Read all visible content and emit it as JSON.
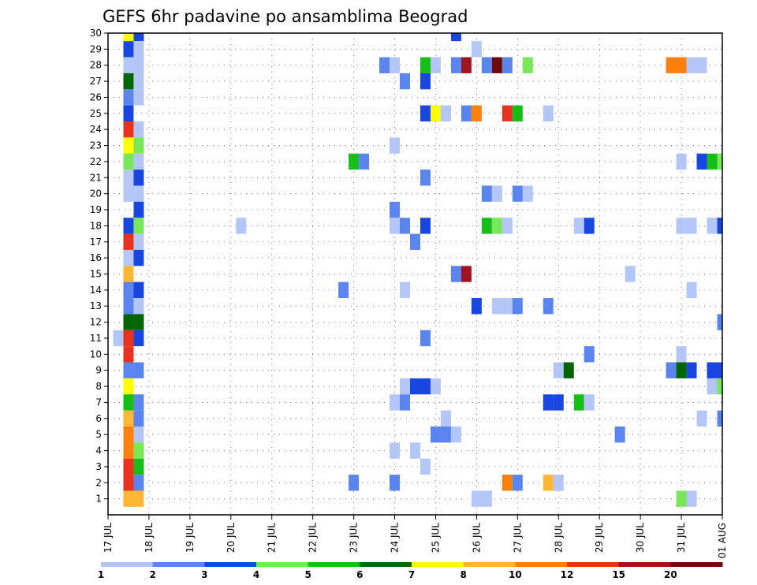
{
  "chart_data": {
    "type": "heatmap",
    "title": "GEFS 6hr padavine po ansamblima Beograd",
    "x_tick_labels": [
      "17 JUL",
      "18 JUL",
      "19 JUL",
      "20 JUL",
      "21 JUL",
      "22 JUL",
      "23 JUL",
      "24 JUL",
      "25 JUL",
      "26 JUL",
      "27 JUL",
      "28 JUL",
      "29 JUL",
      "30 JUL",
      "31 JUL",
      "01 AUG"
    ],
    "y_tick_labels": [
      "1",
      "2",
      "3",
      "4",
      "5",
      "6",
      "7",
      "8",
      "9",
      "10",
      "11",
      "12",
      "13",
      "14",
      "15",
      "16",
      "17",
      "18",
      "19",
      "20",
      "21",
      "22",
      "23",
      "24",
      "25",
      "26",
      "27",
      "28",
      "29",
      "30"
    ],
    "xlim_days": [
      0,
      15
    ],
    "ylim": [
      0,
      30
    ],
    "grid": true,
    "legend_placement": "bottom",
    "legend_labels": [
      "1",
      "2",
      "3",
      "4",
      "5",
      "6",
      "7",
      "8",
      "10",
      "12",
      "15",
      "20"
    ],
    "palette": [
      "#b3c6f5",
      "#5b85ee",
      "#1846de",
      "#78e85a",
      "#17be17",
      "#056505",
      "#ffff00",
      "#ffb637",
      "#ff7f0f",
      "#e6321e",
      "#a0141e",
      "#6e0a0a"
    ],
    "cell_step_days": 0.25,
    "cells": [
      {
        "ens": 30,
        "x": 0.5,
        "c": 6
      },
      {
        "ens": 30,
        "x": 0.75,
        "c": 2
      },
      {
        "ens": 30,
        "x": 8.5,
        "c": 2
      },
      {
        "ens": 29,
        "x": 0.5,
        "c": 2
      },
      {
        "ens": 29,
        "x": 0.75,
        "c": 0
      },
      {
        "ens": 29,
        "x": 9,
        "c": 0
      },
      {
        "ens": 28,
        "x": 0.5,
        "c": 0
      },
      {
        "ens": 28,
        "x": 0.75,
        "c": 0
      },
      {
        "ens": 28,
        "x": 6.75,
        "c": 1
      },
      {
        "ens": 28,
        "x": 7,
        "c": 0
      },
      {
        "ens": 28,
        "x": 7.75,
        "c": 4
      },
      {
        "ens": 28,
        "x": 8,
        "c": 0
      },
      {
        "ens": 28,
        "x": 8.5,
        "c": 1
      },
      {
        "ens": 28,
        "x": 8.75,
        "c": 10
      },
      {
        "ens": 28,
        "x": 9.25,
        "c": 1
      },
      {
        "ens": 28,
        "x": 9.5,
        "c": 11
      },
      {
        "ens": 28,
        "x": 9.75,
        "c": 1
      },
      {
        "ens": 28,
        "x": 10.25,
        "c": 3
      },
      {
        "ens": 28,
        "x": 13.75,
        "c": 8
      },
      {
        "ens": 28,
        "x": 14,
        "c": 8
      },
      {
        "ens": 28,
        "x": 14.25,
        "c": 0
      },
      {
        "ens": 28,
        "x": 14.5,
        "c": 0
      },
      {
        "ens": 27,
        "x": 0.5,
        "c": 5
      },
      {
        "ens": 27,
        "x": 0.75,
        "c": 0
      },
      {
        "ens": 27,
        "x": 7.25,
        "c": 1
      },
      {
        "ens": 27,
        "x": 7.75,
        "c": 2
      },
      {
        "ens": 26,
        "x": 0.5,
        "c": 1
      },
      {
        "ens": 26,
        "x": 0.75,
        "c": 0
      },
      {
        "ens": 25,
        "x": 0.5,
        "c": 2
      },
      {
        "ens": 25,
        "x": 7.75,
        "c": 2
      },
      {
        "ens": 25,
        "x": 8,
        "c": 6
      },
      {
        "ens": 25,
        "x": 8.25,
        "c": 0
      },
      {
        "ens": 25,
        "x": 8.75,
        "c": 1
      },
      {
        "ens": 25,
        "x": 9,
        "c": 8
      },
      {
        "ens": 25,
        "x": 9.75,
        "c": 9
      },
      {
        "ens": 25,
        "x": 10,
        "c": 4
      },
      {
        "ens": 25,
        "x": 10.75,
        "c": 0
      },
      {
        "ens": 24,
        "x": 0.5,
        "c": 9
      },
      {
        "ens": 24,
        "x": 0.75,
        "c": 0
      },
      {
        "ens": 23,
        "x": 0.5,
        "c": 6
      },
      {
        "ens": 23,
        "x": 0.75,
        "c": 3
      },
      {
        "ens": 23,
        "x": 7,
        "c": 0
      },
      {
        "ens": 22,
        "x": 0.5,
        "c": 3
      },
      {
        "ens": 22,
        "x": 0.75,
        "c": 0
      },
      {
        "ens": 22,
        "x": 6,
        "c": 4
      },
      {
        "ens": 22,
        "x": 6.25,
        "c": 1
      },
      {
        "ens": 22,
        "x": 14,
        "c": 0
      },
      {
        "ens": 22,
        "x": 14.5,
        "c": 2
      },
      {
        "ens": 22,
        "x": 14.75,
        "c": 4
      },
      {
        "ens": 22,
        "x": 15,
        "c": 3
      },
      {
        "ens": 21,
        "x": 0.5,
        "c": 0
      },
      {
        "ens": 21,
        "x": 0.75,
        "c": 2
      },
      {
        "ens": 21,
        "x": 7.75,
        "c": 1
      },
      {
        "ens": 20,
        "x": 0.5,
        "c": 0
      },
      {
        "ens": 20,
        "x": 0.75,
        "c": 0
      },
      {
        "ens": 20,
        "x": 9.25,
        "c": 1
      },
      {
        "ens": 20,
        "x": 9.5,
        "c": 0
      },
      {
        "ens": 20,
        "x": 10,
        "c": 1
      },
      {
        "ens": 20,
        "x": 10.25,
        "c": 0
      },
      {
        "ens": 19,
        "x": 0.75,
        "c": 2
      },
      {
        "ens": 19,
        "x": 7,
        "c": 1
      },
      {
        "ens": 18,
        "x": 0.5,
        "c": 2
      },
      {
        "ens": 18,
        "x": 0.75,
        "c": 3
      },
      {
        "ens": 18,
        "x": 3.25,
        "c": 0
      },
      {
        "ens": 18,
        "x": 7,
        "c": 0
      },
      {
        "ens": 18,
        "x": 7.25,
        "c": 1
      },
      {
        "ens": 18,
        "x": 7.75,
        "c": 2
      },
      {
        "ens": 18,
        "x": 9.25,
        "c": 4
      },
      {
        "ens": 18,
        "x": 9.5,
        "c": 3
      },
      {
        "ens": 18,
        "x": 9.75,
        "c": 0
      },
      {
        "ens": 18,
        "x": 11.5,
        "c": 0
      },
      {
        "ens": 18,
        "x": 11.75,
        "c": 2
      },
      {
        "ens": 18,
        "x": 14,
        "c": 0
      },
      {
        "ens": 18,
        "x": 14.25,
        "c": 0
      },
      {
        "ens": 18,
        "x": 14.75,
        "c": 0
      },
      {
        "ens": 18,
        "x": 15,
        "c": 2
      },
      {
        "ens": 17,
        "x": 0.5,
        "c": 9
      },
      {
        "ens": 17,
        "x": 0.75,
        "c": 0
      },
      {
        "ens": 17,
        "x": 7.5,
        "c": 1
      },
      {
        "ens": 16,
        "x": 0.5,
        "c": 0
      },
      {
        "ens": 16,
        "x": 0.75,
        "c": 2
      },
      {
        "ens": 15,
        "x": 0.5,
        "c": 7
      },
      {
        "ens": 15,
        "x": 8.5,
        "c": 1
      },
      {
        "ens": 15,
        "x": 8.75,
        "c": 10
      },
      {
        "ens": 15,
        "x": 12.75,
        "c": 0
      },
      {
        "ens": 14,
        "x": 0.5,
        "c": 1
      },
      {
        "ens": 14,
        "x": 0.75,
        "c": 2
      },
      {
        "ens": 14,
        "x": 5.75,
        "c": 1
      },
      {
        "ens": 14,
        "x": 7.25,
        "c": 0
      },
      {
        "ens": 14,
        "x": 14.25,
        "c": 0
      },
      {
        "ens": 13,
        "x": 0.5,
        "c": 1
      },
      {
        "ens": 13,
        "x": 0.75,
        "c": 0
      },
      {
        "ens": 13,
        "x": 9,
        "c": 2
      },
      {
        "ens": 13,
        "x": 9.5,
        "c": 0
      },
      {
        "ens": 13,
        "x": 9.75,
        "c": 0
      },
      {
        "ens": 13,
        "x": 10,
        "c": 1
      },
      {
        "ens": 13,
        "x": 10.75,
        "c": 1
      },
      {
        "ens": 12,
        "x": 0.5,
        "c": 5
      },
      {
        "ens": 12,
        "x": 0.75,
        "c": 5
      },
      {
        "ens": 12,
        "x": 15,
        "c": 1
      },
      {
        "ens": 11,
        "x": 0.25,
        "c": 0
      },
      {
        "ens": 11,
        "x": 0.5,
        "c": 9
      },
      {
        "ens": 11,
        "x": 0.75,
        "c": 2
      },
      {
        "ens": 11,
        "x": 7.75,
        "c": 1
      },
      {
        "ens": 10,
        "x": 0.5,
        "c": 9
      },
      {
        "ens": 10,
        "x": 11.75,
        "c": 1
      },
      {
        "ens": 10,
        "x": 14,
        "c": 0
      },
      {
        "ens": 9,
        "x": 0.5,
        "c": 1
      },
      {
        "ens": 9,
        "x": 0.75,
        "c": 1
      },
      {
        "ens": 9,
        "x": 11,
        "c": 0
      },
      {
        "ens": 9,
        "x": 11.25,
        "c": 5
      },
      {
        "ens": 9,
        "x": 13.75,
        "c": 1
      },
      {
        "ens": 9,
        "x": 14,
        "c": 5
      },
      {
        "ens": 9,
        "x": 14.25,
        "c": 2
      },
      {
        "ens": 9,
        "x": 14.75,
        "c": 2
      },
      {
        "ens": 9,
        "x": 15,
        "c": 2
      },
      {
        "ens": 8,
        "x": 0.5,
        "c": 6
      },
      {
        "ens": 8,
        "x": 7.25,
        "c": 0
      },
      {
        "ens": 8,
        "x": 7.5,
        "c": 2
      },
      {
        "ens": 8,
        "x": 7.75,
        "c": 2
      },
      {
        "ens": 8,
        "x": 8,
        "c": 0
      },
      {
        "ens": 8,
        "x": 14.75,
        "c": 0
      },
      {
        "ens": 8,
        "x": 15,
        "c": 3
      },
      {
        "ens": 7,
        "x": 0.5,
        "c": 4
      },
      {
        "ens": 7,
        "x": 0.75,
        "c": 1
      },
      {
        "ens": 7,
        "x": 7,
        "c": 0
      },
      {
        "ens": 7,
        "x": 7.25,
        "c": 1
      },
      {
        "ens": 7,
        "x": 10.75,
        "c": 2
      },
      {
        "ens": 7,
        "x": 11,
        "c": 2
      },
      {
        "ens": 7,
        "x": 11.5,
        "c": 4
      },
      {
        "ens": 7,
        "x": 11.75,
        "c": 0
      },
      {
        "ens": 6,
        "x": 0.5,
        "c": 7
      },
      {
        "ens": 6,
        "x": 0.75,
        "c": 1
      },
      {
        "ens": 6,
        "x": 8.25,
        "c": 0
      },
      {
        "ens": 6,
        "x": 14.5,
        "c": 0
      },
      {
        "ens": 6,
        "x": 15,
        "c": 1
      },
      {
        "ens": 5,
        "x": 0.5,
        "c": 8
      },
      {
        "ens": 5,
        "x": 0.75,
        "c": 0
      },
      {
        "ens": 5,
        "x": 8,
        "c": 1
      },
      {
        "ens": 5,
        "x": 8.25,
        "c": 1
      },
      {
        "ens": 5,
        "x": 8.5,
        "c": 0
      },
      {
        "ens": 5,
        "x": 12.5,
        "c": 1
      },
      {
        "ens": 4,
        "x": 0.5,
        "c": 8
      },
      {
        "ens": 4,
        "x": 0.75,
        "c": 3
      },
      {
        "ens": 4,
        "x": 7,
        "c": 0
      },
      {
        "ens": 4,
        "x": 7.5,
        "c": 0
      },
      {
        "ens": 3,
        "x": 0.5,
        "c": 9
      },
      {
        "ens": 3,
        "x": 0.75,
        "c": 4
      },
      {
        "ens": 3,
        "x": 7.75,
        "c": 0
      },
      {
        "ens": 2,
        "x": 0.5,
        "c": 9
      },
      {
        "ens": 2,
        "x": 0.75,
        "c": 1
      },
      {
        "ens": 2,
        "x": 6,
        "c": 1
      },
      {
        "ens": 2,
        "x": 7,
        "c": 1
      },
      {
        "ens": 2,
        "x": 9.75,
        "c": 8
      },
      {
        "ens": 2,
        "x": 10,
        "c": 1
      },
      {
        "ens": 2,
        "x": 10.75,
        "c": 7
      },
      {
        "ens": 2,
        "x": 11,
        "c": 0
      },
      {
        "ens": 1,
        "x": 0.5,
        "c": 7
      },
      {
        "ens": 1,
        "x": 0.75,
        "c": 7
      },
      {
        "ens": 1,
        "x": 9,
        "c": 0
      },
      {
        "ens": 1,
        "x": 9.25,
        "c": 0
      },
      {
        "ens": 1,
        "x": 14,
        "c": 3
      },
      {
        "ens": 1,
        "x": 14.25,
        "c": 0
      }
    ]
  }
}
